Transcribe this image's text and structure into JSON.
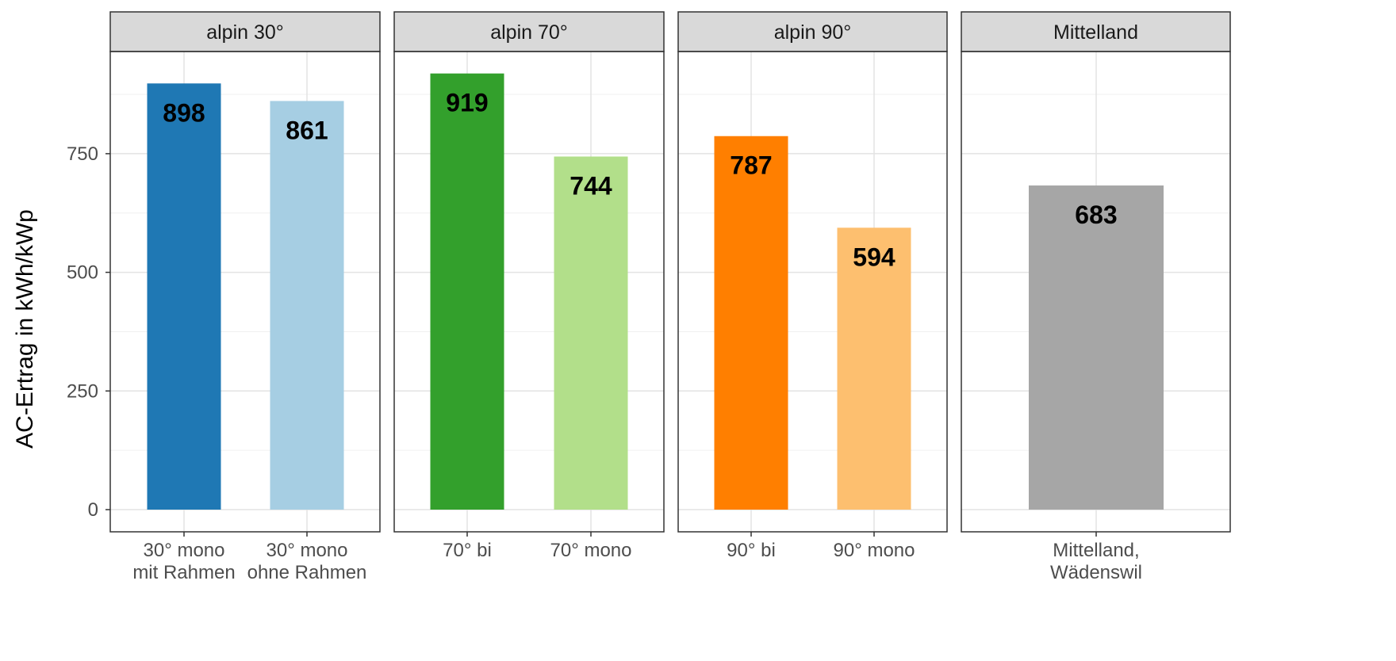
{
  "chart_data": {
    "type": "bar",
    "ylabel": "AC-Ertrag in kWh/kWp",
    "xlabel": "",
    "ylim": [
      0,
      960
    ],
    "yticks": [
      0,
      250,
      500,
      750
    ],
    "grid": true,
    "legend": "none",
    "facets": [
      {
        "name": "alpin 30°",
        "bars": [
          {
            "category": [
              "30° mono",
              "mit Rahmen"
            ],
            "value": 898,
            "color": "#1f78b4"
          },
          {
            "category": [
              "30° mono",
              "ohne Rahmen"
            ],
            "value": 861,
            "color": "#a6cee3"
          }
        ]
      },
      {
        "name": "alpin 70°",
        "bars": [
          {
            "category": [
              "70° bi"
            ],
            "value": 919,
            "color": "#33a02c"
          },
          {
            "category": [
              "70° mono"
            ],
            "value": 744,
            "color": "#b2df8a"
          }
        ]
      },
      {
        "name": "alpin 90°",
        "bars": [
          {
            "category": [
              "90° bi"
            ],
            "value": 787,
            "color": "#ff7f00"
          },
          {
            "category": [
              "90° mono"
            ],
            "value": 594,
            "color": "#fdbf6f"
          }
        ]
      },
      {
        "name": "Mittelland",
        "bars": [
          {
            "category": [
              "Mittelland,",
              "Wädenswil"
            ],
            "value": 683,
            "color": "#a6a6a6"
          }
        ]
      }
    ]
  }
}
